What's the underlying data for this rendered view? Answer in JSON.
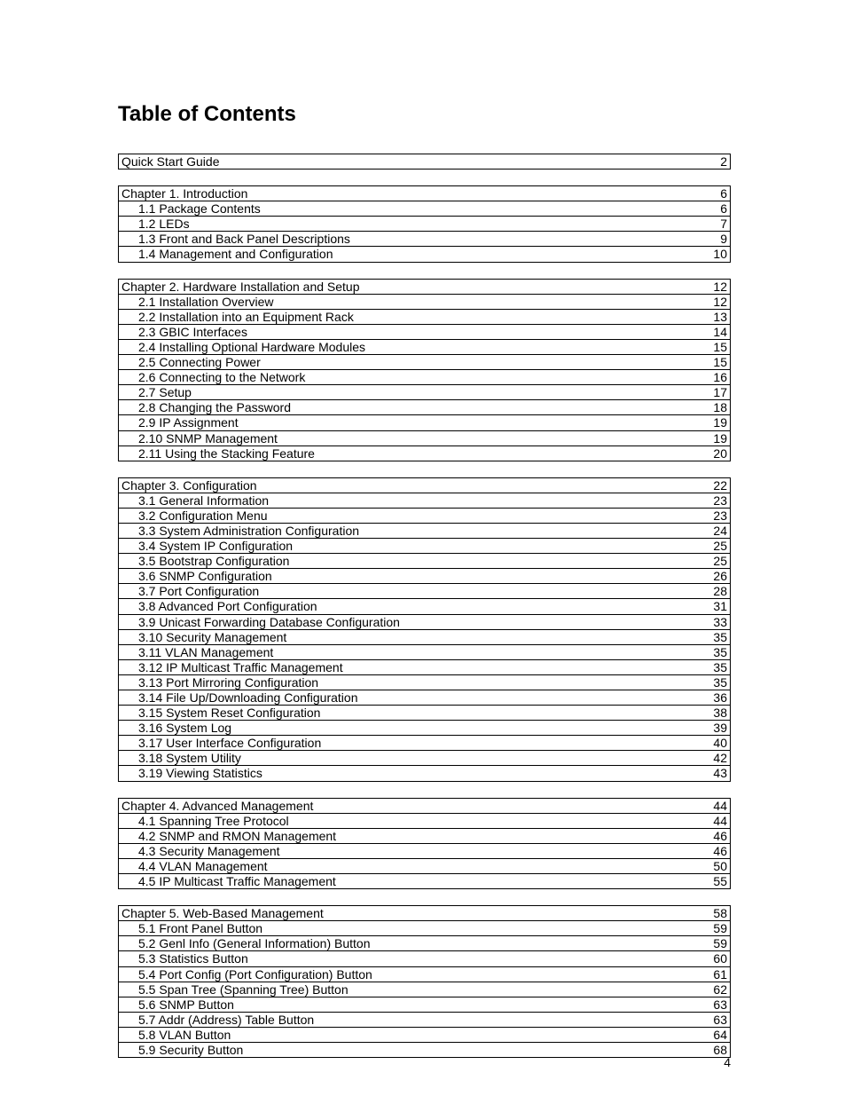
{
  "title": "Table of Contents",
  "page_number": "4",
  "font_family": "Arial, Helvetica, sans-serif",
  "title_fontsize": 24,
  "row_fontsize": 14,
  "border_color": "#000000",
  "text_color": "#000000",
  "background_color": "#ffffff",
  "groups": [
    {
      "standalone": true,
      "rows": [
        {
          "label": "Quick Start Guide",
          "page": "2",
          "indent": 0
        }
      ]
    },
    {
      "rows": [
        {
          "label": "Chapter 1. Introduction",
          "page": "6",
          "indent": 0
        },
        {
          "label": "1.1 Package Contents",
          "page": "6",
          "indent": 1
        },
        {
          "label": "1.2 LEDs",
          "page": "7",
          "indent": 1
        },
        {
          "label": "1.3 Front and Back Panel Descriptions",
          "page": "9",
          "indent": 1
        },
        {
          "label": "1.4 Management and Configuration",
          "page": "10",
          "indent": 1
        }
      ]
    },
    {
      "rows": [
        {
          "label": "Chapter 2. Hardware Installation and Setup",
          "page": "12",
          "indent": 0
        },
        {
          "label": "2.1 Installation Overview",
          "page": "12",
          "indent": 1
        },
        {
          "label": "2.2 Installation into an Equipment Rack",
          "page": "13",
          "indent": 1
        },
        {
          "label": "2.3 GBIC Interfaces",
          "page": "14",
          "indent": 1
        },
        {
          "label": "2.4 Installing Optional Hardware Modules",
          "page": "15",
          "indent": 1
        },
        {
          "label": "2.5 Connecting Power",
          "page": "15",
          "indent": 1
        },
        {
          "label": "2.6 Connecting to the Network",
          "page": "16",
          "indent": 1
        },
        {
          "label": "2.7 Setup",
          "page": "17",
          "indent": 1
        },
        {
          "label": "2.8 Changing the Password",
          "page": "18",
          "indent": 1
        },
        {
          "label": "2.9 IP Assignment",
          "page": "19",
          "indent": 1
        },
        {
          "label": "2.10 SNMP Management",
          "page": "19",
          "indent": 1
        },
        {
          "label": "2.11 Using the Stacking Feature",
          "page": "20",
          "indent": 1
        }
      ]
    },
    {
      "rows": [
        {
          "label": "Chapter 3. Configuration",
          "page": "22",
          "indent": 0
        },
        {
          "label": "3.1 General Information",
          "page": "23",
          "indent": 1
        },
        {
          "label": "3.2 Configuration Menu",
          "page": "23",
          "indent": 1
        },
        {
          "label": "3.3 System Administration Configuration",
          "page": "24",
          "indent": 1
        },
        {
          "label": "3.4 System IP Configuration",
          "page": "25",
          "indent": 1
        },
        {
          "label": "3.5 Bootstrap Configuration",
          "page": "25",
          "indent": 1
        },
        {
          "label": "3.6 SNMP Configuration",
          "page": "26",
          "indent": 1
        },
        {
          "label": "3.7 Port Configuration",
          "page": "28",
          "indent": 1
        },
        {
          "label": "3.8 Advanced Port Configuration",
          "page": "31",
          "indent": 1
        },
        {
          "label": "3.9 Unicast Forwarding Database Configuration",
          "page": "33",
          "indent": 1
        },
        {
          "label": "3.10 Security Management",
          "page": "35",
          "indent": 1
        },
        {
          "label": "3.11 VLAN Management",
          "page": "35",
          "indent": 1
        },
        {
          "label": "3.12 IP Multicast Traffic Management",
          "page": "35",
          "indent": 1
        },
        {
          "label": "3.13 Port Mirroring Configuration",
          "page": "35",
          "indent": 1
        },
        {
          "label": "3.14 File Up/Downloading Configuration",
          "page": "36",
          "indent": 1
        },
        {
          "label": "3.15 System Reset Configuration",
          "page": "38",
          "indent": 1
        },
        {
          "label": "3.16 System Log",
          "page": "39",
          "indent": 1
        },
        {
          "label": "3.17 User Interface Configuration",
          "page": "40",
          "indent": 1
        },
        {
          "label": "3.18 System Utility",
          "page": "42",
          "indent": 1
        },
        {
          "label": "3.19 Viewing Statistics",
          "page": "43",
          "indent": 1
        }
      ]
    },
    {
      "rows": [
        {
          "label": "Chapter 4. Advanced Management",
          "page": "44",
          "indent": 0
        },
        {
          "label": "4.1 Spanning Tree Protocol",
          "page": "44",
          "indent": 1
        },
        {
          "label": "4.2 SNMP and RMON Management",
          "page": "46",
          "indent": 1
        },
        {
          "label": "4.3 Security Management",
          "page": "46",
          "indent": 1
        },
        {
          "label": "4.4 VLAN Management",
          "page": "50",
          "indent": 1
        },
        {
          "label": "4.5 IP Multicast Traffic Management",
          "page": "55",
          "indent": 1
        }
      ]
    },
    {
      "rows": [
        {
          "label": "Chapter 5. Web-Based Management",
          "page": "58",
          "indent": 0
        },
        {
          "label": "5.1 Front Panel Button",
          "page": "59",
          "indent": 1
        },
        {
          "label": "5.2 Genl Info (General Information) Button",
          "page": "59",
          "indent": 1
        },
        {
          "label": "5.3 Statistics Button",
          "page": "60",
          "indent": 1
        },
        {
          "label": "5.4 Port Config (Port Configuration) Button",
          "page": "61",
          "indent": 1
        },
        {
          "label": "5.5 Span Tree (Spanning Tree) Button",
          "page": "62",
          "indent": 1
        },
        {
          "label": "5.6 SNMP Button",
          "page": "63",
          "indent": 1
        },
        {
          "label": "5.7 Addr (Address) Table Button",
          "page": "63",
          "indent": 1
        },
        {
          "label": "5.8 VLAN Button",
          "page": "64",
          "indent": 1
        },
        {
          "label": "5.9 Security Button",
          "page": "68",
          "indent": 1
        }
      ]
    }
  ]
}
